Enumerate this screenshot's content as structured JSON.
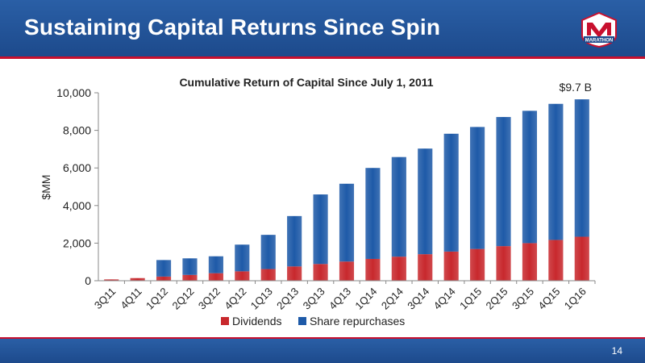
{
  "slide": {
    "title": "Sustaining Capital Returns Since Spin",
    "page_number": "14",
    "logo_text": "MARATHON"
  },
  "chart_data": {
    "type": "bar",
    "stacked": true,
    "title": "Cumulative Return of Capital Since July 1, 2011",
    "xlabel": "",
    "ylabel": "$MM",
    "ylim": [
      0,
      10000
    ],
    "yticks": [
      0,
      2000,
      4000,
      6000,
      8000,
      10000
    ],
    "ytick_labels": [
      "0",
      "2,000",
      "4,000",
      "6,000",
      "8,000",
      "10,000"
    ],
    "grid": false,
    "legend_position": "bottom",
    "categories": [
      "3Q11",
      "4Q11",
      "1Q12",
      "2Q12",
      "3Q12",
      "4Q12",
      "1Q13",
      "2Q13",
      "3Q13",
      "4Q13",
      "1Q14",
      "2Q14",
      "3Q14",
      "4Q14",
      "1Q15",
      "2Q15",
      "3Q15",
      "4Q15",
      "1Q16"
    ],
    "series": [
      {
        "name": "Dividends",
        "color": "#c8282d",
        "values": [
          70,
          140,
          220,
          310,
          400,
          500,
          620,
          760,
          890,
          1020,
          1160,
          1280,
          1410,
          1550,
          1690,
          1840,
          2000,
          2170,
          2340
        ]
      },
      {
        "name": "Share repurchases",
        "color": "#1e5aa8",
        "values": [
          0,
          0,
          880,
          880,
          900,
          1420,
          1820,
          2680,
          3700,
          4140,
          4840,
          5300,
          5620,
          6270,
          6490,
          6870,
          7040,
          7240,
          7310
        ]
      }
    ],
    "annotations": [
      {
        "text": "$9.7 B",
        "category": "1Q16"
      }
    ]
  }
}
